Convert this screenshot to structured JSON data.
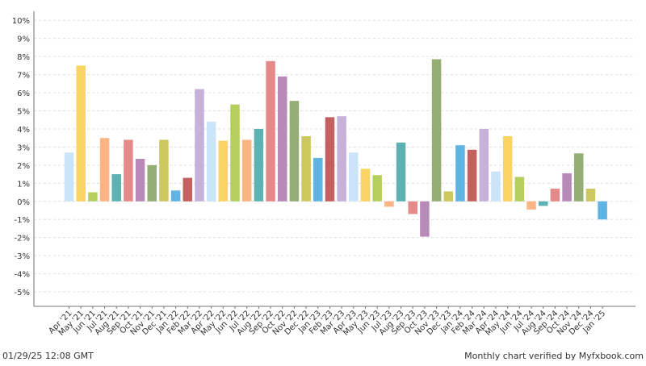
{
  "chart_data": {
    "type": "bar",
    "categories": [
      "Apr '21",
      "May '21",
      "Jun '21",
      "Jul '21",
      "Aug '21",
      "Sep '21",
      "Oct '21",
      "Nov '21",
      "Dec '21",
      "Jan '22",
      "Feb '22",
      "Mar '22",
      "Apr '22",
      "May '22",
      "Jun '22",
      "Jul '22",
      "Aug '22",
      "Sep '22",
      "Oct '22",
      "Nov '22",
      "Dec '22",
      "Jan '23",
      "Feb '23",
      "Mar '23",
      "Apr '23",
      "May '23",
      "Jun '23",
      "Jul '23",
      "Aug '23",
      "Sep '23",
      "Oct '23",
      "Nov '23",
      "Dec '23",
      "Jan '24",
      "Feb '24",
      "Mar '24",
      "Apr '24",
      "May '24",
      "Jun '24",
      "Jul '24",
      "Aug '24",
      "Sep '24",
      "Oct '24",
      "Nov '24",
      "Dec '24",
      "Jan '25"
    ],
    "values": [
      2.7,
      7.5,
      0.5,
      3.5,
      1.5,
      3.4,
      2.35,
      2.0,
      3.4,
      0.6,
      1.3,
      6.2,
      4.4,
      3.35,
      5.35,
      3.4,
      4.0,
      7.75,
      6.9,
      5.55,
      3.6,
      2.4,
      4.65,
      4.7,
      2.7,
      1.8,
      1.45,
      -0.3,
      3.25,
      -0.7,
      -1.95,
      7.85,
      0.55,
      3.1,
      2.85,
      4.0,
      1.65,
      3.6,
      1.35,
      -0.45,
      -0.25,
      0.7,
      1.55,
      2.65,
      0.7,
      -1.0
    ],
    "colors": [
      "#cce4f7",
      "#f9d364",
      "#b5cf5e",
      "#fbb584",
      "#5fb2b2",
      "#e58a8a",
      "#b88ab8",
      "#94ad72",
      "#cdc85e",
      "#5fb4e4",
      "#c4605e",
      "#c5b1d9",
      "#cce4f7",
      "#f9d364",
      "#b5cf5e",
      "#fbb584",
      "#5fb2b2",
      "#e58a8a",
      "#b88ab8",
      "#94ad72",
      "#cdc85e",
      "#5fb4e4",
      "#c4605e",
      "#c5b1d9",
      "#cce4f7",
      "#f9d364",
      "#b5cf5e",
      "#fbb584",
      "#5fb2b2",
      "#e58a8a",
      "#b88ab8",
      "#94ad72",
      "#cdc85e",
      "#5fb4e4",
      "#c4605e",
      "#c5b1d9",
      "#cce4f7",
      "#f9d364",
      "#b5cf5e",
      "#fbb584",
      "#5fb2b2",
      "#e58a8a",
      "#b88ab8",
      "#94ad72",
      "#cdc85e",
      "#5fb4e4"
    ],
    "yticks": [
      -5,
      -4,
      -3,
      -2,
      -1,
      0,
      1,
      2,
      3,
      4,
      5,
      6,
      7,
      8,
      9,
      10
    ],
    "ytick_suffix": "%",
    "ylim": [
      -5.8,
      10.5
    ],
    "grid": true,
    "legend": "none"
  },
  "footer": {
    "timestamp": "01/29/25 12:08 GMT",
    "verified": "Monthly chart verified by Myfxbook.com"
  }
}
